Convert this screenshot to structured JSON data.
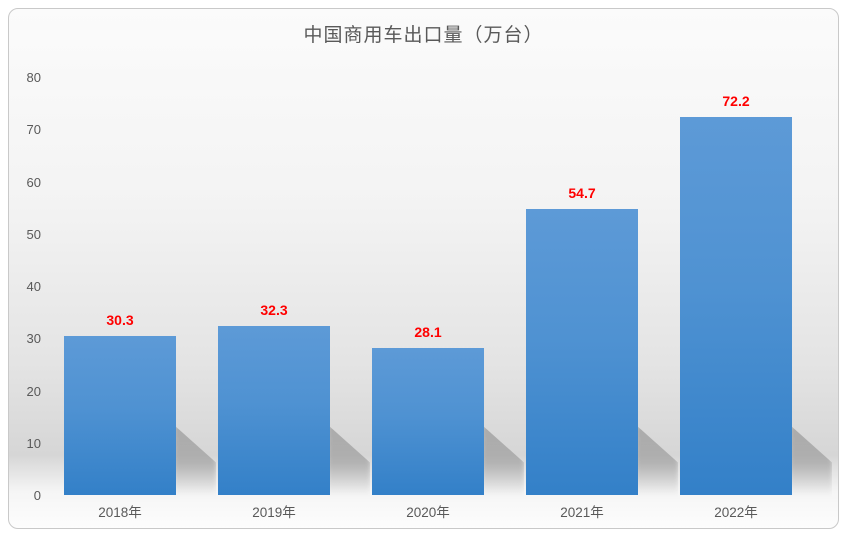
{
  "chart_data": {
    "type": "bar",
    "title": "中国商用车出口量（万台）",
    "categories": [
      "2018年",
      "2019年",
      "2020年",
      "2021年",
      "2022年"
    ],
    "values": [
      30.3,
      32.3,
      28.1,
      54.7,
      72.2
    ],
    "value_labels": [
      "30.3",
      "32.3",
      "28.1",
      "54.7",
      "72.2"
    ],
    "xlabel": "",
    "ylabel": "",
    "ylim": [
      0,
      80
    ],
    "yticks": [
      0,
      10,
      20,
      30,
      40,
      50,
      60,
      70,
      80
    ],
    "grid": "off",
    "legend": "none",
    "colors": {
      "bar_gradient_top": "#5d9ad7",
      "bar_gradient_bottom": "#3380c8",
      "value_label": "#ff0000",
      "axis_text": "#595959",
      "title_text": "#595959",
      "frame_border": "#c9c9c9"
    }
  }
}
